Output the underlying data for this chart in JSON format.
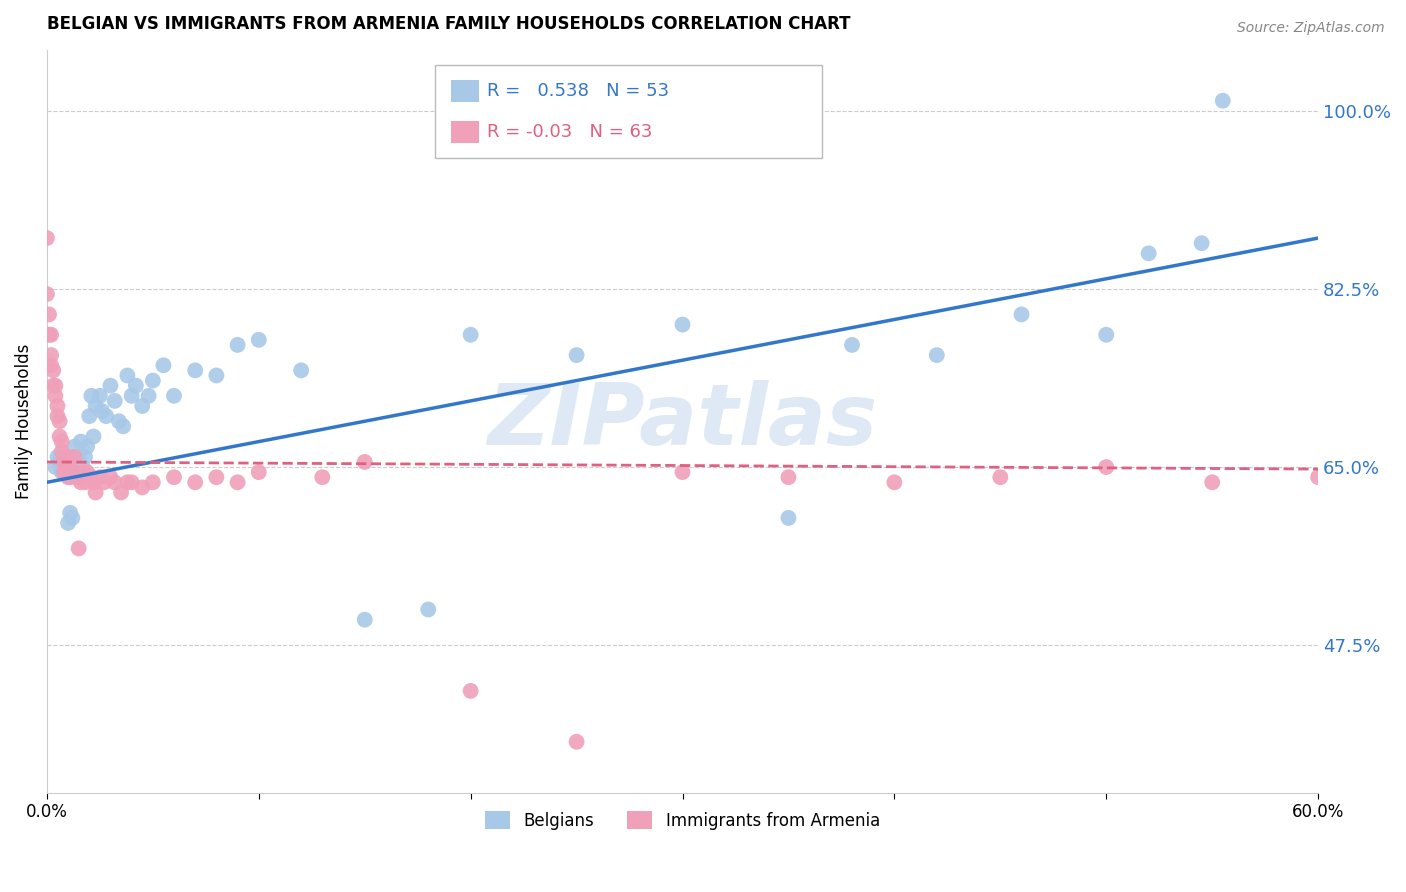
{
  "title": "BELGIAN VS IMMIGRANTS FROM ARMENIA FAMILY HOUSEHOLDS CORRELATION CHART",
  "source": "Source: ZipAtlas.com",
  "ylabel": "Family Households",
  "ytick_vals": [
    0.475,
    0.65,
    0.825,
    1.0
  ],
  "ytick_labels": [
    "47.5%",
    "65.0%",
    "82.5%",
    "100.0%"
  ],
  "xmin": 0.0,
  "xmax": 0.6,
  "ymin": 0.33,
  "ymax": 1.06,
  "watermark": "ZIPatlas",
  "belgian_R": 0.538,
  "belgian_N": 53,
  "armenian_R": -0.03,
  "armenian_N": 63,
  "belgian_color": "#a8c8e8",
  "armenian_color": "#f0a0b8",
  "belgian_line_color": "#3377cc",
  "armenian_line_color": "#e06080",
  "belgian_x": [
    0.004,
    0.005,
    0.006,
    0.007,
    0.008,
    0.009,
    0.01,
    0.011,
    0.012,
    0.013,
    0.014,
    0.015,
    0.016,
    0.017,
    0.018,
    0.019,
    0.02,
    0.021,
    0.022,
    0.023,
    0.025,
    0.026,
    0.028,
    0.03,
    0.032,
    0.034,
    0.036,
    0.038,
    0.04,
    0.042,
    0.045,
    0.048,
    0.05,
    0.055,
    0.06,
    0.07,
    0.08,
    0.09,
    0.1,
    0.12,
    0.15,
    0.18,
    0.2,
    0.25,
    0.3,
    0.35,
    0.38,
    0.42,
    0.46,
    0.5,
    0.52,
    0.545,
    0.555
  ],
  "belgian_y": [
    0.65,
    0.66,
    0.655,
    0.645,
    0.65,
    0.66,
    0.595,
    0.605,
    0.6,
    0.67,
    0.64,
    0.66,
    0.675,
    0.65,
    0.66,
    0.67,
    0.7,
    0.72,
    0.68,
    0.71,
    0.72,
    0.705,
    0.7,
    0.73,
    0.715,
    0.695,
    0.69,
    0.74,
    0.72,
    0.73,
    0.71,
    0.72,
    0.735,
    0.75,
    0.72,
    0.745,
    0.74,
    0.77,
    0.775,
    0.745,
    0.5,
    0.51,
    0.78,
    0.76,
    0.79,
    0.6,
    0.77,
    0.76,
    0.8,
    0.78,
    0.86,
    0.87,
    1.01
  ],
  "armenian_x": [
    0.0,
    0.0,
    0.001,
    0.001,
    0.002,
    0.002,
    0.002,
    0.003,
    0.003,
    0.004,
    0.004,
    0.005,
    0.005,
    0.006,
    0.006,
    0.007,
    0.007,
    0.008,
    0.008,
    0.009,
    0.009,
    0.01,
    0.01,
    0.011,
    0.012,
    0.013,
    0.013,
    0.014,
    0.015,
    0.016,
    0.017,
    0.018,
    0.019,
    0.02,
    0.021,
    0.022,
    0.023,
    0.025,
    0.027,
    0.03,
    0.032,
    0.035,
    0.038,
    0.04,
    0.045,
    0.05,
    0.06,
    0.07,
    0.08,
    0.09,
    0.1,
    0.13,
    0.15,
    0.2,
    0.25,
    0.3,
    0.35,
    0.4,
    0.45,
    0.5,
    0.55,
    0.6,
    0.015
  ],
  "armenian_y": [
    0.875,
    0.82,
    0.8,
    0.78,
    0.78,
    0.76,
    0.75,
    0.745,
    0.73,
    0.73,
    0.72,
    0.71,
    0.7,
    0.695,
    0.68,
    0.675,
    0.665,
    0.655,
    0.645,
    0.66,
    0.65,
    0.65,
    0.64,
    0.64,
    0.645,
    0.66,
    0.645,
    0.64,
    0.64,
    0.635,
    0.645,
    0.635,
    0.645,
    0.64,
    0.64,
    0.635,
    0.625,
    0.64,
    0.635,
    0.64,
    0.635,
    0.625,
    0.635,
    0.635,
    0.63,
    0.635,
    0.64,
    0.635,
    0.64,
    0.635,
    0.645,
    0.64,
    0.655,
    0.43,
    0.38,
    0.645,
    0.64,
    0.635,
    0.64,
    0.65,
    0.635,
    0.64,
    0.57
  ]
}
